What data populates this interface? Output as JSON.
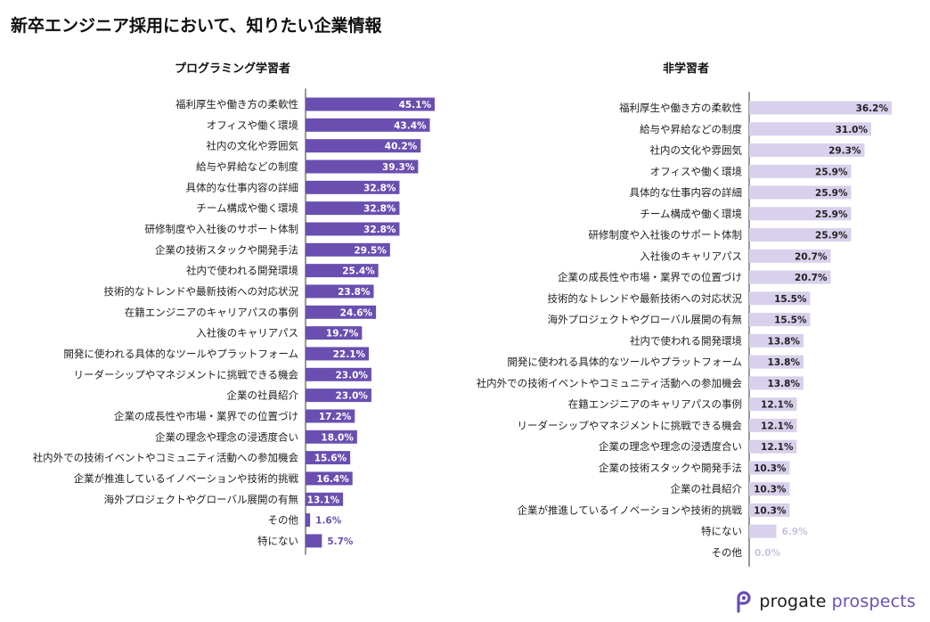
{
  "page": {
    "title": "新卒エンジニア採用において、知りたい企業情報",
    "brand_name": "progate",
    "brand_suffix": "prospects",
    "brand_color": "#6a4fb1"
  },
  "chart_data": [
    {
      "type": "bar",
      "orientation": "horizontal",
      "title": "プログラミング学習者",
      "bar_color": "#6a4fb1",
      "label_color_inside": "#ffffff",
      "label_color_outside": "#6a4fb1",
      "unit": "%",
      "xlim": [
        0,
        45.1
      ],
      "categories": [
        "福利厚生や働き方の柔軟性",
        "オフィスや働く環境",
        "社内の文化や雰囲気",
        "給与や昇給などの制度",
        "具体的な仕事内容の詳細",
        "チーム構成や働く環境",
        "研修制度や入社後のサポート体制",
        "企業の技術スタックや開発手法",
        "社内で使われる開発環境",
        "技術的なトレンドや最新技術への対応状況",
        "在籍エンジニアのキャリアパスの事例",
        "入社後のキャリアパス",
        "開発に使われる具体的なツールやプラットフォーム",
        "リーダーシップやマネジメントに挑戦できる機会",
        "企業の社員紹介",
        "企業の成長性や市場・業界での位置づけ",
        "企業の理念や理念の浸透度合い",
        "社内外での技術イベントやコミュニティ活動への参加機会",
        "企業が推進しているイノベーションや技術的挑戦",
        "海外プロジェクトやグローバル展開の有無",
        "その他",
        "特にない"
      ],
      "values": [
        45.1,
        43.4,
        40.2,
        39.3,
        32.8,
        32.8,
        32.8,
        29.5,
        25.4,
        23.8,
        24.6,
        19.7,
        22.1,
        23.0,
        23.0,
        17.2,
        18.0,
        15.6,
        16.4,
        13.1,
        1.6,
        5.7
      ],
      "labels": [
        "45.1%",
        "43.4%",
        "40.2%",
        "39.3%",
        "32.8%",
        "32.8%",
        "32.8%",
        "29.5%",
        "25.4%",
        "23.8%",
        "24.6%",
        "19.7%",
        "22.1%",
        "23.0%",
        "23.0%",
        "17.2%",
        "18.0%",
        "15.6%",
        "16.4%",
        "13.1%",
        "1.6%",
        "5.7%"
      ]
    },
    {
      "type": "bar",
      "orientation": "horizontal",
      "title": "非学習者",
      "bar_color": "#d8d0ec",
      "label_color_inside": "#222222",
      "label_color_outside": "#c9c1e3",
      "unit": "%",
      "xlim": [
        0,
        36.2
      ],
      "categories": [
        "福利厚生や働き方の柔軟性",
        "給与や昇給などの制度",
        "社内の文化や雰囲気",
        "オフィスや働く環境",
        "具体的な仕事内容の詳細",
        "チーム構成や働く環境",
        "研修制度や入社後のサポート体制",
        "入社後のキャリアパス",
        "企業の成長性や市場・業界での位置づけ",
        "技術的なトレンドや最新技術への対応状況",
        "海外プロジェクトやグローバル展開の有無",
        "社内で使われる開発環境",
        "開発に使われる具体的なツールやプラットフォーム",
        "社内外での技術イベントやコミュニティ活動への参加機会",
        "在籍エンジニアのキャリアパスの事例",
        "リーダーシップやマネジメントに挑戦できる機会",
        "企業の理念や理念の浸透度合い",
        "企業の技術スタックや開発手法",
        "企業の社員紹介",
        "企業が推進しているイノベーションや技術的挑戦",
        "特にない",
        "その他"
      ],
      "values": [
        36.2,
        31.0,
        29.3,
        25.9,
        25.9,
        25.9,
        25.9,
        20.7,
        20.7,
        15.5,
        15.5,
        13.8,
        13.8,
        13.8,
        12.1,
        12.1,
        12.1,
        10.3,
        10.3,
        10.3,
        6.9,
        0.0
      ],
      "labels": [
        "36.2%",
        "31.0%",
        "29.3%",
        "25.9%",
        "25.9%",
        "25.9%",
        "25.9%",
        "20.7%",
        "20.7%",
        "15.5%",
        "15.5%",
        "13.8%",
        "13.8%",
        "13.8%",
        "12.1%",
        "12.1%",
        "12.1%",
        "10.3%",
        "10.3%",
        "10.3%",
        "6.9%",
        "0.0%"
      ]
    }
  ]
}
